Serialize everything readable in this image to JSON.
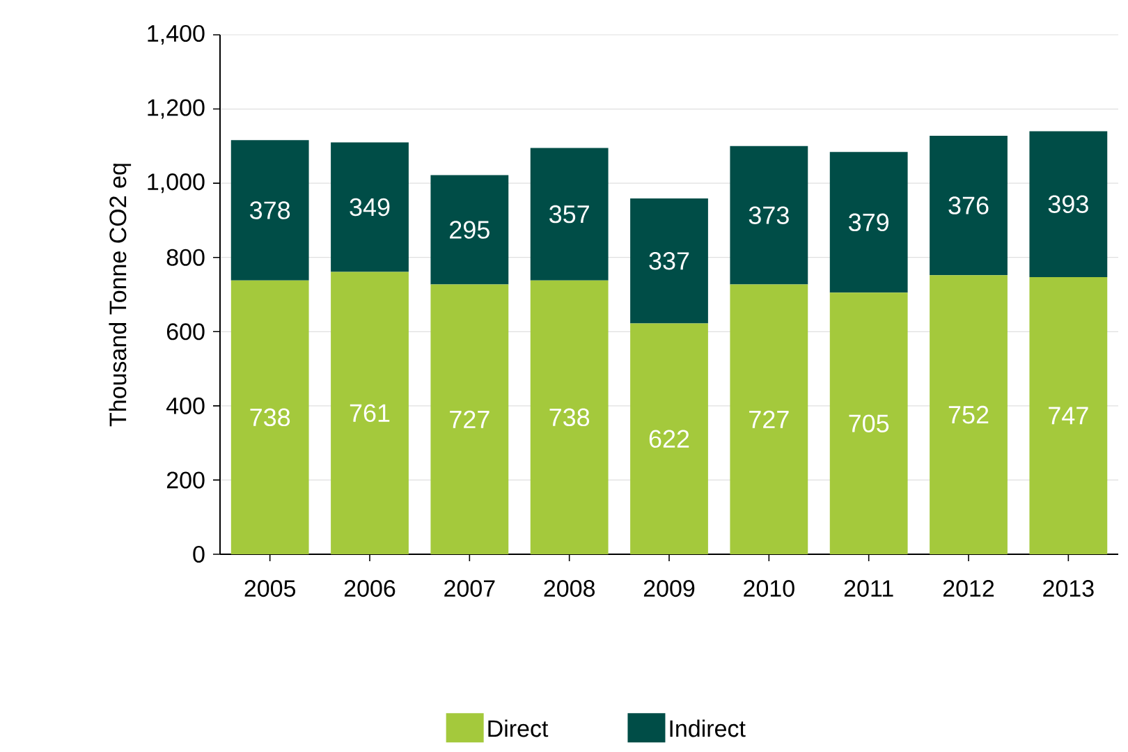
{
  "chart_data": {
    "type": "bar",
    "stacked": true,
    "ylabel": "Thousand Tonne CO2 eq",
    "categories": [
      "2005",
      "2006",
      "2007",
      "2008",
      "2009",
      "2010",
      "2011",
      "2012",
      "2013"
    ],
    "series": [
      {
        "name": "Direct",
        "color": "#a4c93c",
        "values": [
          738,
          761,
          727,
          738,
          622,
          727,
          705,
          752,
          747
        ]
      },
      {
        "name": "Indirect",
        "color": "#004d47",
        "values": [
          378,
          349,
          295,
          357,
          337,
          373,
          379,
          376,
          393
        ]
      }
    ],
    "ylim": [
      0,
      1400
    ],
    "yticks": [
      0,
      200,
      400,
      600,
      800,
      {
        "value": 1000,
        "label": "1,000"
      },
      {
        "value": 1200,
        "label": "1,200"
      },
      {
        "value": 1400,
        "label": "1,400"
      }
    ],
    "grid": "y",
    "legend": "bottom",
    "data_labels": true
  }
}
